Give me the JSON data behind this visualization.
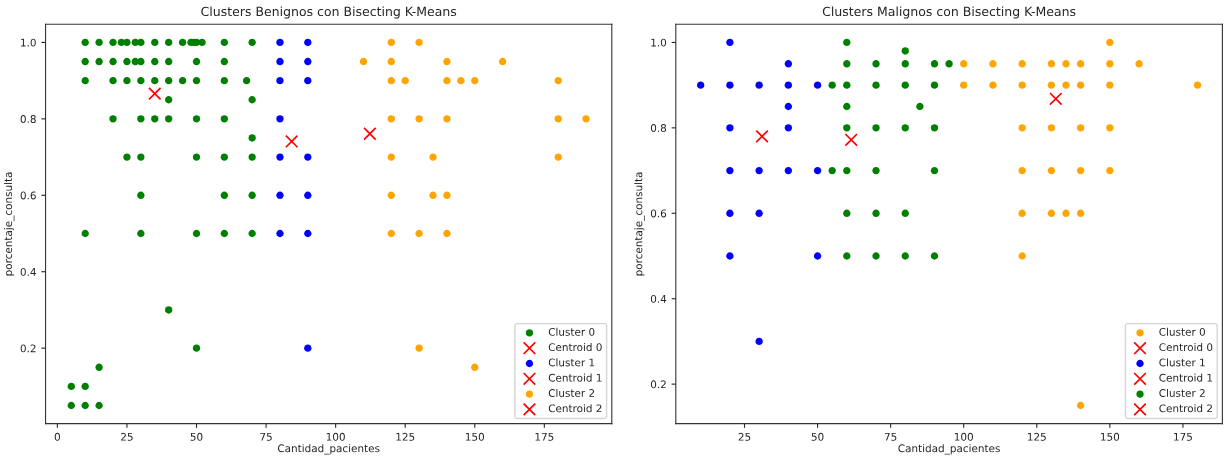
{
  "chart_data": [
    {
      "type": "scatter",
      "title": "Clusters Benignos con Bisecting K-Means",
      "xlabel": "Cantidad_pacientes",
      "ylabel": "porcentaje_consulta",
      "xlim": [
        -4.25,
        199.25
      ],
      "ylim": [
        0.0025,
        1.0475
      ],
      "xticks": [
        0,
        25,
        50,
        75,
        100,
        125,
        150,
        175
      ],
      "yticks": [
        {
          "value": 0.2,
          "label": "0.2"
        },
        {
          "value": 0.4,
          "label": "0.4"
        },
        {
          "value": 0.6,
          "label": "0.6"
        },
        {
          "value": 0.8,
          "label": "0.8"
        },
        {
          "value": 1.0,
          "label": "1.0"
        }
      ],
      "legend": "lower right",
      "grid": false,
      "series": [
        {
          "name": "Cluster 0",
          "color": "#008000",
          "marker": "circle",
          "x": [
            10,
            15,
            20,
            23,
            25,
            28,
            30,
            35,
            40,
            45,
            48,
            49,
            50,
            52,
            60,
            70,
            10,
            15,
            20,
            25,
            28,
            30,
            35,
            40,
            50,
            60,
            10,
            20,
            25,
            30,
            35,
            40,
            45,
            50,
            60,
            68,
            40,
            70,
            20,
            30,
            35,
            40,
            50,
            60,
            70,
            25,
            30,
            50,
            60,
            70,
            30,
            60,
            70,
            10,
            30,
            50,
            60,
            70,
            40,
            50,
            15,
            5,
            10,
            5,
            10,
            15
          ],
          "values": [
            1.0,
            1.0,
            1.0,
            1.0,
            1.0,
            1.0,
            1.0,
            1.0,
            1.0,
            1.0,
            1.0,
            1.0,
            1.0,
            1.0,
            1.0,
            1.0,
            0.95,
            0.95,
            0.95,
            0.95,
            0.95,
            0.95,
            0.95,
            0.95,
            0.95,
            0.95,
            0.9,
            0.9,
            0.9,
            0.9,
            0.9,
            0.9,
            0.9,
            0.9,
            0.9,
            0.9,
            0.85,
            0.85,
            0.8,
            0.8,
            0.8,
            0.8,
            0.8,
            0.8,
            0.75,
            0.7,
            0.7,
            0.7,
            0.7,
            0.7,
            0.6,
            0.6,
            0.6,
            0.5,
            0.5,
            0.5,
            0.5,
            0.5,
            0.3,
            0.2,
            0.15,
            0.1,
            0.1,
            0.05,
            0.05,
            0.05
          ]
        },
        {
          "name": "Centroid 0",
          "color": "#ff0000",
          "marker": "cross",
          "x": [
            35.0
          ],
          "values": [
            0.866
          ]
        },
        {
          "name": "Cluster 1",
          "color": "#0000ff",
          "marker": "circle",
          "x": [
            80,
            90,
            80,
            90,
            80,
            90,
            80,
            80,
            90,
            80,
            90,
            80,
            90,
            90
          ],
          "values": [
            1.0,
            1.0,
            0.95,
            0.95,
            0.9,
            0.9,
            0.8,
            0.7,
            0.7,
            0.6,
            0.6,
            0.5,
            0.5,
            0.2
          ]
        },
        {
          "name": "Centroid 1",
          "color": "#ff0000",
          "marker": "cross",
          "x": [
            84.2
          ],
          "values": [
            0.741
          ]
        },
        {
          "name": "Cluster 2",
          "color": "#ffa500",
          "marker": "circle",
          "x": [
            120,
            130,
            110,
            120,
            140,
            160,
            120,
            125,
            140,
            145,
            150,
            180,
            120,
            130,
            140,
            180,
            190,
            120,
            135,
            180,
            120,
            135,
            140,
            120,
            130,
            140,
            130,
            150
          ],
          "values": [
            1.0,
            1.0,
            0.95,
            0.95,
            0.95,
            0.95,
            0.9,
            0.9,
            0.9,
            0.9,
            0.9,
            0.9,
            0.8,
            0.8,
            0.8,
            0.8,
            0.8,
            0.7,
            0.7,
            0.7,
            0.6,
            0.6,
            0.6,
            0.5,
            0.5,
            0.5,
            0.2,
            0.15
          ]
        },
        {
          "name": "Centroid 2",
          "color": "#ff0000",
          "marker": "cross",
          "x": [
            112.3
          ],
          "values": [
            0.761
          ]
        }
      ]
    },
    {
      "type": "scatter",
      "title": "Clusters Malignos con Bisecting K-Means",
      "xlabel": "Cantidad_pacientes",
      "ylabel": "porcentaje_consulta",
      "xlim": [
        1.5,
        188.5
      ],
      "ylim": [
        0.1075,
        1.0425
      ],
      "xticks": [
        25,
        50,
        75,
        100,
        125,
        150,
        175
      ],
      "yticks": [
        {
          "value": 0.2,
          "label": "0.2"
        },
        {
          "value": 0.4,
          "label": "0.4"
        },
        {
          "value": 0.6,
          "label": "0.6"
        },
        {
          "value": 0.8,
          "label": "0.8"
        },
        {
          "value": 1.0,
          "label": "1.0"
        }
      ],
      "legend": "lower right",
      "grid": false,
      "series": [
        {
          "name": "Cluster 0",
          "color": "#ffa500",
          "marker": "circle",
          "x": [
            150,
            100,
            110,
            120,
            130,
            135,
            140,
            150,
            160,
            100,
            110,
            120,
            130,
            135,
            140,
            150,
            180,
            120,
            130,
            140,
            150,
            120,
            130,
            140,
            150,
            120,
            130,
            135,
            140,
            120,
            140
          ],
          "values": [
            1.0,
            0.95,
            0.95,
            0.95,
            0.95,
            0.95,
            0.95,
            0.95,
            0.95,
            0.9,
            0.9,
            0.9,
            0.9,
            0.9,
            0.9,
            0.9,
            0.9,
            0.8,
            0.8,
            0.8,
            0.8,
            0.7,
            0.7,
            0.7,
            0.7,
            0.6,
            0.6,
            0.6,
            0.6,
            0.5,
            0.15
          ]
        },
        {
          "name": "Centroid 0",
          "color": "#ff0000",
          "marker": "cross",
          "x": [
            131.5
          ],
          "values": [
            0.868
          ]
        },
        {
          "name": "Cluster 1",
          "color": "#0000ff",
          "marker": "circle",
          "x": [
            20,
            40,
            10,
            20,
            30,
            40,
            50,
            40,
            20,
            40,
            20,
            30,
            40,
            50,
            20,
            30,
            20,
            50,
            30
          ],
          "values": [
            1.0,
            0.95,
            0.9,
            0.9,
            0.9,
            0.9,
            0.9,
            0.85,
            0.8,
            0.8,
            0.7,
            0.7,
            0.7,
            0.7,
            0.6,
            0.6,
            0.5,
            0.5,
            0.3
          ]
        },
        {
          "name": "Centroid 1",
          "color": "#ff0000",
          "marker": "cross",
          "x": [
            31
          ],
          "values": [
            0.78
          ]
        },
        {
          "name": "Cluster 2",
          "color": "#008000",
          "marker": "circle",
          "x": [
            60,
            80,
            60,
            70,
            80,
            90,
            95,
            55,
            60,
            70,
            80,
            90,
            60,
            85,
            60,
            70,
            80,
            90,
            55,
            60,
            70,
            90,
            60,
            70,
            80,
            60,
            70,
            80,
            90
          ],
          "values": [
            1.0,
            0.98,
            0.95,
            0.95,
            0.95,
            0.95,
            0.95,
            0.9,
            0.9,
            0.9,
            0.9,
            0.9,
            0.85,
            0.85,
            0.8,
            0.8,
            0.8,
            0.8,
            0.7,
            0.7,
            0.7,
            0.7,
            0.6,
            0.6,
            0.6,
            0.5,
            0.5,
            0.5,
            0.5
          ]
        },
        {
          "name": "Centroid 2",
          "color": "#ff0000",
          "marker": "cross",
          "x": [
            61.5
          ],
          "values": [
            0.772
          ]
        }
      ]
    }
  ]
}
